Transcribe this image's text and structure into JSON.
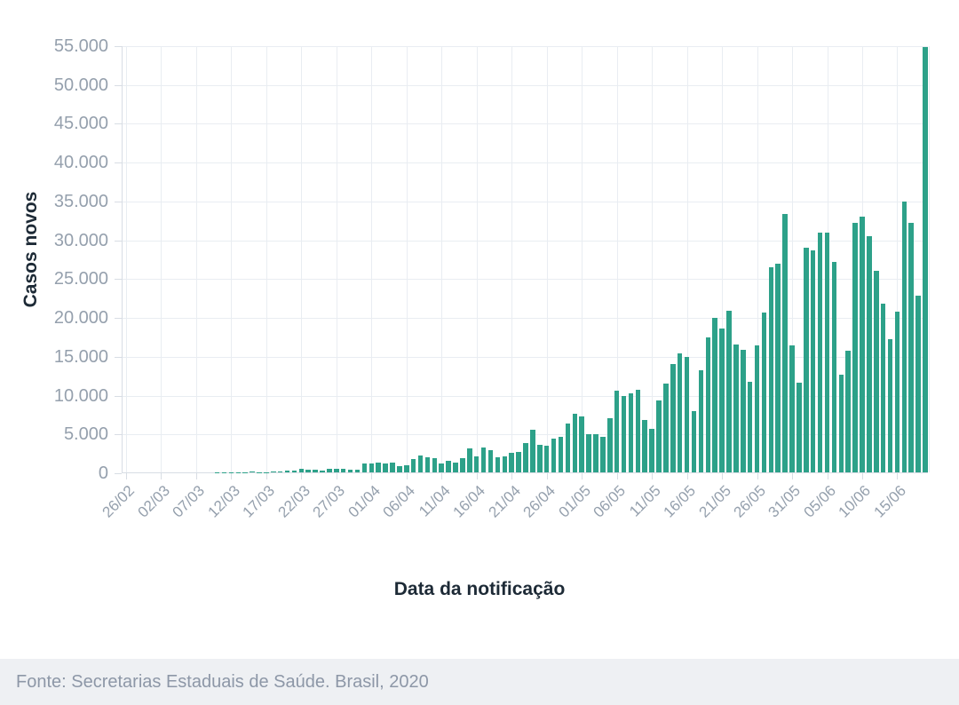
{
  "figure": {
    "y_axis_title": "Casos novos",
    "x_axis_title": "Data da notificação",
    "footer": "Fonte: Secretarias Estaduais de Saúde. Brasil, 2020"
  },
  "colors": {
    "bar": "#2da189",
    "grid": "#e9edf2",
    "axis": "#d8dde4",
    "tick_label": "#95a0ad",
    "title": "#1d2a36",
    "footer_bg": "#eef0f3",
    "footer_text": "#8d97a7"
  },
  "chart_data": {
    "type": "bar",
    "title": "",
    "xlabel": "Data da notificação",
    "ylabel": "Casos novos",
    "ylim": [
      0,
      55000
    ],
    "grid": true,
    "legend": "none",
    "y_ticks": [
      {
        "value": 0,
        "label": "0"
      },
      {
        "value": 5000,
        "label": "5.000"
      },
      {
        "value": 10000,
        "label": "10.000"
      },
      {
        "value": 15000,
        "label": "15.000"
      },
      {
        "value": 20000,
        "label": "20.000"
      },
      {
        "value": 25000,
        "label": "25.000"
      },
      {
        "value": 30000,
        "label": "30.000"
      },
      {
        "value": 35000,
        "label": "35.000"
      },
      {
        "value": 40000,
        "label": "40.000"
      },
      {
        "value": 45000,
        "label": "45.000"
      },
      {
        "value": 50000,
        "label": "50.000"
      },
      {
        "value": 55000,
        "label": "55.000"
      }
    ],
    "x_tick_step": 5,
    "x_tick_labels": [
      "26/02",
      "02/03",
      "07/03",
      "12/03",
      "17/03",
      "22/03",
      "27/03",
      "01/04",
      "06/04",
      "11/04",
      "16/04",
      "21/04",
      "26/04",
      "01/05",
      "06/05",
      "11/05",
      "16/05",
      "21/05",
      "26/05",
      "31/05",
      "05/06",
      "10/06",
      "15/06"
    ],
    "categories": [
      "26/02",
      "27/02",
      "28/02",
      "29/02",
      "01/03",
      "02/03",
      "03/03",
      "04/03",
      "05/03",
      "06/03",
      "07/03",
      "08/03",
      "09/03",
      "10/03",
      "11/03",
      "12/03",
      "13/03",
      "14/03",
      "15/03",
      "16/03",
      "17/03",
      "18/03",
      "19/03",
      "20/03",
      "21/03",
      "22/03",
      "23/03",
      "24/03",
      "25/03",
      "26/03",
      "27/03",
      "28/03",
      "29/03",
      "30/03",
      "31/03",
      "01/04",
      "02/04",
      "03/04",
      "04/04",
      "05/04",
      "06/04",
      "07/04",
      "08/04",
      "09/04",
      "10/04",
      "11/04",
      "12/04",
      "13/04",
      "14/04",
      "15/04",
      "16/04",
      "17/04",
      "18/04",
      "19/04",
      "20/04",
      "21/04",
      "22/04",
      "23/04",
      "24/04",
      "25/04",
      "26/04",
      "27/04",
      "28/04",
      "29/04",
      "30/04",
      "01/05",
      "02/05",
      "03/05",
      "04/05",
      "05/05",
      "06/05",
      "07/05",
      "08/05",
      "09/05",
      "10/05",
      "11/05",
      "12/05",
      "13/05",
      "14/05",
      "15/05",
      "16/05",
      "17/05",
      "18/05",
      "19/05",
      "20/05",
      "21/05",
      "22/05",
      "23/05",
      "24/05",
      "25/05",
      "26/05",
      "27/05",
      "28/05",
      "29/05",
      "30/05",
      "31/05",
      "01/06",
      "02/06",
      "03/06",
      "04/06",
      "05/06",
      "06/06",
      "07/06",
      "08/06",
      "09/06",
      "10/06",
      "11/06",
      "12/06",
      "13/06",
      "14/06",
      "15/06",
      "16/06",
      "17/06",
      "18/06",
      "19/06"
    ],
    "values": [
      1,
      0,
      0,
      1,
      0,
      0,
      1,
      1,
      4,
      6,
      6,
      6,
      5,
      9,
      18,
      25,
      21,
      23,
      79,
      34,
      57,
      137,
      114,
      283,
      224,
      418,
      345,
      310,
      232,
      482,
      502,
      487,
      352,
      323,
      1138,
      1119,
      1208,
      1146,
      1222,
      852,
      926,
      1661,
      2210,
      1930,
      1781,
      1089,
      1442,
      1261,
      1832,
      3058,
      2105,
      3257,
      2917,
      1997,
      2089,
      2498,
      2678,
      3735,
      5514,
      3503,
      3379,
      4346,
      4613,
      6276,
      7502,
      7218,
      4970,
      4972,
      4588,
      6935,
      10503,
      9888,
      10222,
      10611,
      6760,
      5632,
      9258,
      11385,
      13944,
      15305,
      14919,
      7938,
      13140,
      17408,
      19951,
      18508,
      20803,
      16508,
      15813,
      11687,
      16324,
      20599,
      26417,
      26928,
      33274,
      16409,
      11598,
      28936,
      28633,
      30925,
      30830,
      27075,
      12581,
      15654,
      32091,
      32913,
      30465,
      25982,
      21704,
      17110,
      20647,
      34918,
      32188,
      22765,
      54771
    ]
  }
}
